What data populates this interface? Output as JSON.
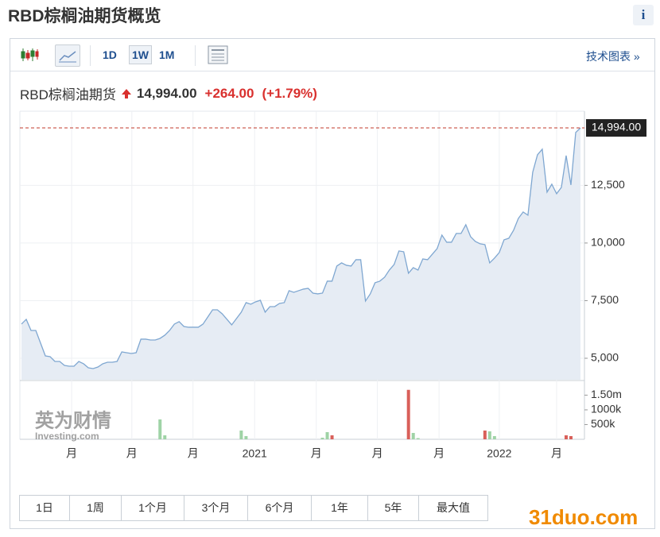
{
  "header": {
    "title": "RBD棕榈油期货概览",
    "info": "i"
  },
  "toolbar": {
    "intervals": [
      "1D",
      "1W",
      "1M"
    ],
    "tech": "技术图表 »"
  },
  "quote": {
    "name": "RBD棕榈油期货",
    "price": {
      "value": 14994,
      "label": "14,994.00"
    },
    "change": "+264.00",
    "change_pct": "(+1.79%)"
  },
  "chart_data": {
    "type": "line",
    "values": [
      6483,
      6690,
      6207,
      6207,
      5655,
      5103,
      5069,
      4862,
      4862,
      4690,
      4655,
      4655,
      4862,
      4759,
      4586,
      4552,
      4621,
      4759,
      4828,
      4828,
      4862,
      5276,
      5241,
      5207,
      5241,
      5828,
      5828,
      5793,
      5793,
      5862,
      6000,
      6207,
      6483,
      6586,
      6379,
      6345,
      6345,
      6345,
      6483,
      6793,
      7103,
      7103,
      6931,
      6690,
      6448,
      6724,
      6999,
      7413,
      7345,
      7448,
      7517,
      6999,
      7241,
      7241,
      7379,
      7413,
      7931,
      7862,
      7931,
      8000,
      8034,
      7827,
      7793,
      7827,
      8345,
      8345,
      9000,
      9138,
      9034,
      9000,
      9276,
      9276,
      7483,
      7793,
      8276,
      8345,
      8517,
      8827,
      9069,
      9655,
      9621,
      8689,
      8931,
      8827,
      9310,
      9276,
      9517,
      9758,
      10345,
      10034,
      10034,
      10414,
      10414,
      10793,
      10276,
      10069,
      9965,
      9931,
      9138,
      9345,
      9586,
      10138,
      10207,
      10552,
      11069,
      11345,
      11207,
      13069,
      13827,
      14069,
      12207,
      12552,
      12138,
      12414,
      13793,
      12517,
      14793,
      14994
    ],
    "color": "#7fa7d1",
    "area_color": "#e6ecf4",
    "last_line_color": "#c0392b",
    "xlim": [
      0,
      117
    ],
    "xticks": [
      {
        "value": 10.5,
        "label": "月"
      },
      {
        "value": 23.1,
        "label": "月"
      },
      {
        "value": 35.9,
        "label": "月"
      },
      {
        "value": 48.8,
        "label": "2021"
      },
      {
        "value": 61.7,
        "label": "月"
      },
      {
        "value": 74.5,
        "label": "月"
      },
      {
        "value": 87.4,
        "label": "月"
      },
      {
        "value": 100,
        "label": "2022"
      },
      {
        "value": 112,
        "label": "月"
      }
    ],
    "ylim": [
      4069,
      15718
    ],
    "yticks": [
      {
        "value": 5000,
        "label": "5,000"
      },
      {
        "value": 7500,
        "label": "7,500"
      },
      {
        "value": 10000,
        "label": "10,000"
      },
      {
        "value": 12500,
        "label": "12,500"
      }
    ],
    "grid": true,
    "volume": {
      "ylim": [
        0,
        1970000
      ],
      "yticks": [
        {
          "value": 500000,
          "label": "500k"
        },
        {
          "value": 1000000,
          "label": "1000k"
        },
        {
          "value": 1500000,
          "label": "1.50m"
        }
      ],
      "up": {
        "color": "#9fd3a6",
        "x": [
          29,
          30,
          46,
          47,
          63,
          64,
          82,
          83,
          98,
          99
        ],
        "values": [
          675000,
          135000,
          297000,
          108000,
          54000,
          243000,
          216000,
          40000,
          270000,
          108000
        ]
      },
      "down": {
        "color": "#d9605a",
        "x": [
          65,
          81,
          97,
          114,
          115
        ],
        "values": [
          135000,
          1680000,
          297000,
          135000,
          108000
        ]
      }
    }
  },
  "ranges": [
    "1日",
    "1周",
    "1个月",
    "3个月",
    "6个月",
    "1年",
    "5年",
    "最大值"
  ],
  "watermark": {
    "cn": "英为财情",
    "en": "Investing.com"
  },
  "brand": "31duo.com"
}
